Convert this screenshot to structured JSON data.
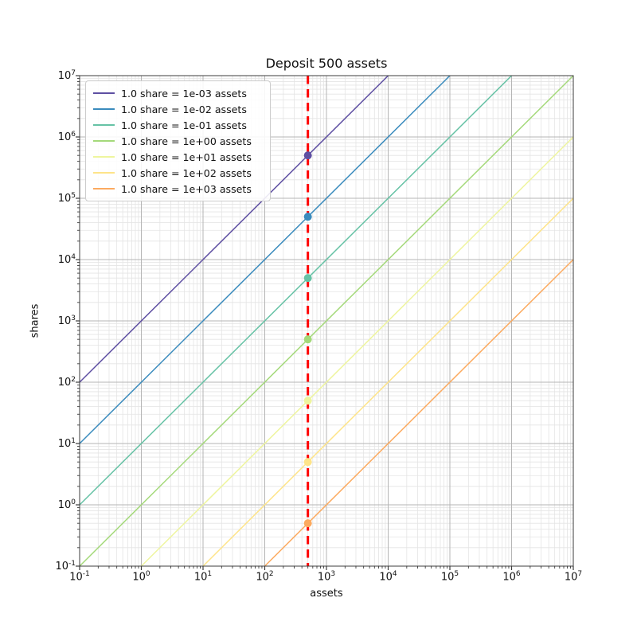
{
  "chart_data": {
    "type": "line",
    "title": "Deposit 500 assets",
    "xlabel": "assets",
    "ylabel": "shares",
    "x_scale": "log",
    "y_scale": "log",
    "xlim": [
      0.1,
      10000000
    ],
    "ylim": [
      0.1,
      10000000
    ],
    "tick_exponent_min": -1,
    "tick_exponent_max": 7,
    "x_tick_labels": [
      "10^-1",
      "10^0",
      "10^1",
      "10^2",
      "10^3",
      "10^4",
      "10^5",
      "10^6",
      "10^7"
    ],
    "y_tick_labels": [
      "10^-1",
      "10^0",
      "10^1",
      "10^2",
      "10^3",
      "10^4",
      "10^5",
      "10^6",
      "10^7"
    ],
    "grid": "both",
    "legend_position": "upper left",
    "deposit_assets": 500,
    "vline": {
      "x": 500,
      "color": "#ff0000",
      "style": "dashed",
      "width": 3
    },
    "series": [
      {
        "label": "1.0 share = 1e-03 assets",
        "assets_per_share": 0.001,
        "color": "#5e4fa2",
        "marker": {
          "assets": 500,
          "shares": 500000
        }
      },
      {
        "label": "1.0 share = 1e-02 assets",
        "assets_per_share": 0.01,
        "color": "#3a8bbd",
        "marker": {
          "assets": 500,
          "shares": 50000
        }
      },
      {
        "label": "1.0 share = 1e-01 assets",
        "assets_per_share": 0.1,
        "color": "#66c2a5",
        "marker": {
          "assets": 500,
          "shares": 5000
        }
      },
      {
        "label": "1.0 share = 1e+00 assets",
        "assets_per_share": 1.0,
        "color": "#a4d97a",
        "marker": {
          "assets": 500,
          "shares": 500
        }
      },
      {
        "label": "1.0 share = 1e+01 assets",
        "assets_per_share": 10.0,
        "color": "#eef59e",
        "marker": {
          "assets": 500,
          "shares": 50
        }
      },
      {
        "label": "1.0 share = 1e+02 assets",
        "assets_per_share": 100.0,
        "color": "#fee489",
        "marker": {
          "assets": 500,
          "shares": 5
        }
      },
      {
        "label": "1.0 share = 1e+03 assets",
        "assets_per_share": 1000.0,
        "color": "#fcaa5f",
        "marker": {
          "assets": 500,
          "shares": 0.5
        }
      }
    ],
    "style_colors": {
      "grid_major": "#b5b5b5",
      "grid_minor": "#e4e4e4",
      "spine": "#3c3c3c",
      "tick": "#3c3c3c",
      "text": "#111111",
      "legend_border": "#cccccc"
    },
    "marker_radius": 5,
    "line_width": 1.5
  }
}
